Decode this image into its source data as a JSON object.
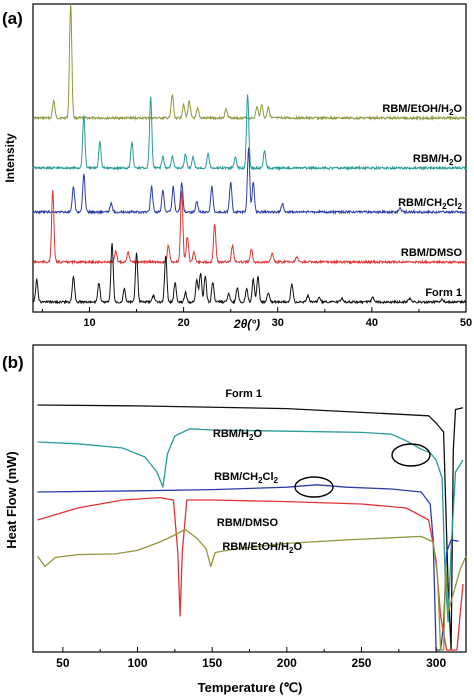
{
  "chart_data": [
    {
      "panel": "(a)",
      "type": "line",
      "xlabel": "2θ(°)",
      "ylabel": "Intensity",
      "xlim": [
        4,
        50
      ],
      "xticks": [
        "10",
        "20",
        "30",
        "40",
        "50"
      ],
      "grid": false,
      "series": [
        {
          "name": "RBM/EtOH/H2O",
          "name_parts": [
            "RBM/EtOH/H",
            "2",
            "O"
          ],
          "color": "#8a9a3c",
          "peaks": [
            [
              6.2,
              0.15
            ],
            [
              8.0,
              1.0
            ],
            [
              18.8,
              0.2
            ],
            [
              20.0,
              0.12
            ],
            [
              20.6,
              0.15
            ],
            [
              21.5,
              0.08
            ],
            [
              24.5,
              0.08
            ],
            [
              27.8,
              0.1
            ],
            [
              28.3,
              0.12
            ],
            [
              29.0,
              0.1
            ]
          ]
        },
        {
          "name": "RBM/H2O",
          "name_parts": [
            "RBM/H",
            "2",
            "O"
          ],
          "color": "#2a9a9a",
          "peaks": [
            [
              9.4,
              0.55
            ],
            [
              11.1,
              0.28
            ],
            [
              14.5,
              0.28
            ],
            [
              16.5,
              0.75
            ],
            [
              17.8,
              0.12
            ],
            [
              18.8,
              0.12
            ],
            [
              20.2,
              0.15
            ],
            [
              21.0,
              0.12
            ],
            [
              22.6,
              0.15
            ],
            [
              25.5,
              0.12
            ],
            [
              26.8,
              0.78
            ],
            [
              28.6,
              0.18
            ]
          ]
        },
        {
          "name": "RBM/CH2Cl2",
          "name_parts": [
            "RBM/CH",
            "2",
            "Cl",
            "2",
            ""
          ],
          "color": "#2b3ea8",
          "peaks": [
            [
              8.3,
              0.3
            ],
            [
              9.4,
              0.45
            ],
            [
              12.3,
              0.1
            ],
            [
              16.6,
              0.3
            ],
            [
              17.8,
              0.25
            ],
            [
              18.9,
              0.3
            ],
            [
              19.8,
              0.35
            ],
            [
              21.4,
              0.12
            ],
            [
              23.0,
              0.3
            ],
            [
              25.0,
              0.35
            ],
            [
              26.9,
              0.75
            ],
            [
              27.4,
              0.35
            ],
            [
              30.5,
              0.1
            ],
            [
              43.0,
              0.05
            ]
          ]
        },
        {
          "name": "RBM/DMSO",
          "name_parts": [
            "RBM/DMSO"
          ],
          "color": "#e03434",
          "peaks": [
            [
              6.1,
              0.85
            ],
            [
              12.8,
              0.12
            ],
            [
              14.1,
              0.12
            ],
            [
              18.4,
              0.2
            ],
            [
              19.8,
              0.85
            ],
            [
              20.4,
              0.3
            ],
            [
              21.1,
              0.12
            ],
            [
              23.3,
              0.45
            ],
            [
              25.2,
              0.2
            ],
            [
              27.2,
              0.15
            ],
            [
              29.4,
              0.1
            ],
            [
              32.0,
              0.06
            ]
          ]
        },
        {
          "name": "Form 1",
          "name_parts": [
            "Form 1"
          ],
          "color": "#111111",
          "peaks": [
            [
              4.4,
              0.35
            ],
            [
              8.3,
              0.4
            ],
            [
              11.0,
              0.3
            ],
            [
              12.4,
              0.9
            ],
            [
              13.7,
              0.2
            ],
            [
              15.0,
              0.75
            ],
            [
              16.8,
              0.1
            ],
            [
              18.1,
              0.72
            ],
            [
              19.1,
              0.3
            ],
            [
              20.2,
              0.15
            ],
            [
              21.4,
              0.35
            ],
            [
              21.8,
              0.45
            ],
            [
              22.3,
              0.4
            ],
            [
              23.1,
              0.3
            ],
            [
              24.8,
              0.12
            ],
            [
              25.7,
              0.22
            ],
            [
              26.7,
              0.2
            ],
            [
              27.4,
              0.35
            ],
            [
              27.9,
              0.4
            ],
            [
              29.0,
              0.15
            ],
            [
              31.5,
              0.28
            ],
            [
              33.2,
              0.1
            ],
            [
              34.4,
              0.08
            ],
            [
              36.8,
              0.06
            ],
            [
              40.1,
              0.08
            ],
            [
              44.0,
              0.05
            ],
            [
              47.5,
              0.04
            ]
          ]
        }
      ]
    },
    {
      "panel": "(b)",
      "type": "line",
      "xlabel": "Temperature (℃)",
      "ylabel": "Heat Flow (mW)",
      "xlim": [
        30,
        320
      ],
      "xticks": [
        "50",
        "100",
        "150",
        "200",
        "250",
        "300"
      ],
      "grid": false,
      "annotations": [
        "ellipse near 280 on RBM/H2O",
        "ellipse near 215 on RBM/CH2Cl2"
      ],
      "series": [
        {
          "name": "Form 1",
          "name_parts": [
            "Form 1"
          ],
          "color": "#111111",
          "points": [
            [
              33,
              0.0
            ],
            [
              100,
              0.1
            ],
            [
              200,
              0.4
            ],
            [
              260,
              0.9
            ],
            [
              295,
              1.2
            ],
            [
              300,
              2.0
            ],
            [
              305,
              3.0
            ],
            [
              308,
              20.0
            ],
            [
              310,
              28.0
            ],
            [
              311.5,
              5.0
            ],
            [
              313,
              0.5
            ],
            [
              318,
              0.3
            ]
          ]
        },
        {
          "name": "RBM/H2O",
          "name_parts": [
            "RBM/H",
            "2",
            "O"
          ],
          "color": "#2a9a9a",
          "points": [
            [
              33,
              0.0
            ],
            [
              60,
              0.3
            ],
            [
              90,
              1.0
            ],
            [
              105,
              2.5
            ],
            [
              113,
              5.0
            ],
            [
              117,
              7.5
            ],
            [
              120,
              2.0
            ],
            [
              125,
              -1.0
            ],
            [
              135,
              -2.2
            ],
            [
              150,
              -2.0
            ],
            [
              200,
              -1.8
            ],
            [
              250,
              -1.6
            ],
            [
              270,
              -1.3
            ],
            [
              280,
              -0.2
            ],
            [
              290,
              1.2
            ],
            [
              296,
              1.8
            ],
            [
              300,
              3.0
            ],
            [
              304,
              6.0
            ],
            [
              306,
              22.0
            ],
            [
              308,
              30.0
            ],
            [
              310,
              18.0
            ],
            [
              313,
              5.0
            ],
            [
              318,
              3.0
            ]
          ]
        },
        {
          "name": "RBM/CH2Cl2",
          "name_parts": [
            "RBM/CH",
            "2",
            "Cl",
            "2",
            ""
          ],
          "color": "#2b3ea8",
          "points": [
            [
              33,
              0.0
            ],
            [
              100,
              -0.2
            ],
            [
              150,
              -0.4
            ],
            [
              200,
              -0.8
            ],
            [
              220,
              -1.2
            ],
            [
              240,
              -0.8
            ],
            [
              270,
              -0.5
            ],
            [
              290,
              0.0
            ],
            [
              296,
              2.0
            ],
            [
              298,
              8.0
            ],
            [
              300,
              30.0
            ],
            [
              303,
              36.0
            ],
            [
              305,
              22.0
            ],
            [
              307,
              10.0
            ],
            [
              310,
              8.0
            ],
            [
              315,
              8.2
            ]
          ]
        },
        {
          "name": "RBM/DMSO",
          "name_parts": [
            "RBM/DMSO"
          ],
          "color": "#e03434",
          "points": [
            [
              33,
              0.0
            ],
            [
              60,
              -1.5
            ],
            [
              90,
              -2.5
            ],
            [
              115,
              -2.8
            ],
            [
              124,
              -2.5
            ],
            [
              127,
              4.0
            ],
            [
              128.5,
              12.0
            ],
            [
              130,
              4.0
            ],
            [
              133,
              -2.5
            ],
            [
              150,
              -2.5
            ],
            [
              200,
              -2.3
            ],
            [
              250,
              -2.0
            ],
            [
              280,
              -1.5
            ],
            [
              295,
              0.0
            ],
            [
              300,
              5.0
            ],
            [
              303,
              12.0
            ],
            [
              307,
              20.0
            ],
            [
              311,
              24.0
            ],
            [
              314,
              30.0
            ],
            [
              316,
              12.0
            ],
            [
              318,
              8.0
            ]
          ]
        },
        {
          "name": "RBM/EtOH/H2O",
          "name_parts": [
            "RBM/EtOH/H",
            "2",
            "O"
          ],
          "color": "#8a9a3c",
          "points": [
            [
              33,
              0.0
            ],
            [
              38,
              1.5
            ],
            [
              45,
              0.2
            ],
            [
              60,
              -0.2
            ],
            [
              85,
              -0.3
            ],
            [
              100,
              -0.8
            ],
            [
              115,
              -2.0
            ],
            [
              125,
              -3.0
            ],
            [
              132,
              -3.8
            ],
            [
              140,
              -2.5
            ],
            [
              146,
              -1.0
            ],
            [
              149,
              1.5
            ],
            [
              152,
              -0.5
            ],
            [
              165,
              -1.0
            ],
            [
              200,
              -1.8
            ],
            [
              240,
              -2.3
            ],
            [
              270,
              -2.6
            ],
            [
              290,
              -2.8
            ],
            [
              298,
              -2.0
            ],
            [
              301,
              3.0
            ],
            [
              303,
              35.0
            ],
            [
              305,
              18.0
            ],
            [
              306.5,
              1.0
            ],
            [
              308,
              8.0
            ],
            [
              312,
              5.0
            ],
            [
              316,
              2.0
            ],
            [
              320,
              0.0
            ]
          ]
        }
      ]
    }
  ]
}
